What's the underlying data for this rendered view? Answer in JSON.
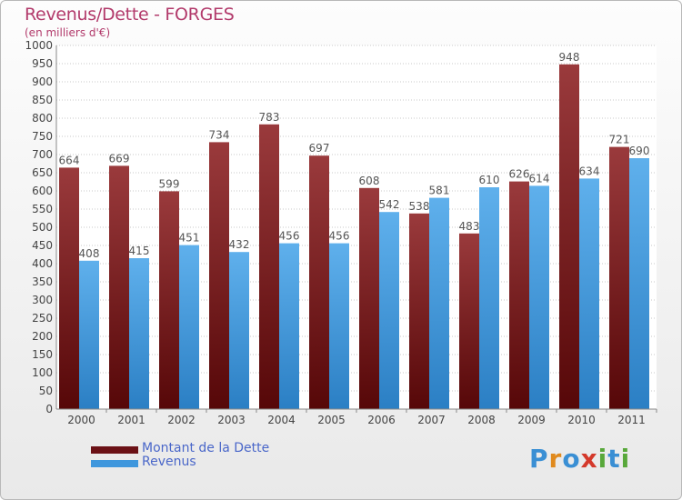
{
  "header": {
    "title": "Revenus/Dette - FORGES",
    "subtitle": "(en milliers d'€)"
  },
  "colors": {
    "dette": "#7a1f24",
    "revenus": "#3f97dd",
    "label": "#555555"
  },
  "legend": {
    "items": [
      {
        "label": "Montant de la Dette",
        "color": "#6b1116"
      },
      {
        "label": "Revenus",
        "color": "#3f97dd"
      }
    ]
  },
  "logo": {
    "text": "Proxiti",
    "letters": [
      "P",
      "r",
      "o",
      "x",
      "i",
      "t",
      "i"
    ],
    "colors": [
      "#3a8fd4",
      "#e08a1e",
      "#3a8fd4",
      "#d4392b",
      "#58a83a",
      "#3a8fd4",
      "#58a83a"
    ]
  },
  "chart_data": {
    "type": "bar",
    "title": "Revenus/Dette - FORGES",
    "subtitle": "(en milliers d'€)",
    "categories": [
      "2000",
      "2001",
      "2002",
      "2003",
      "2004",
      "2005",
      "2006",
      "2007",
      "2008",
      "2009",
      "2010",
      "2011"
    ],
    "series": [
      {
        "name": "Montant de la Dette",
        "values": [
          664,
          669,
          599,
          734,
          783,
          697,
          608,
          538,
          483,
          626,
          948,
          721
        ]
      },
      {
        "name": "Revenus",
        "values": [
          408,
          415,
          451,
          432,
          456,
          456,
          542,
          581,
          610,
          614,
          634,
          690
        ]
      }
    ],
    "ylim": [
      0,
      1000
    ],
    "yticks": [
      0,
      50,
      100,
      150,
      200,
      250,
      300,
      350,
      400,
      450,
      500,
      550,
      600,
      650,
      700,
      750,
      800,
      850,
      900,
      950,
      1000
    ],
    "grid": true,
    "legend_position": "bottom-left",
    "data_labels": true
  }
}
